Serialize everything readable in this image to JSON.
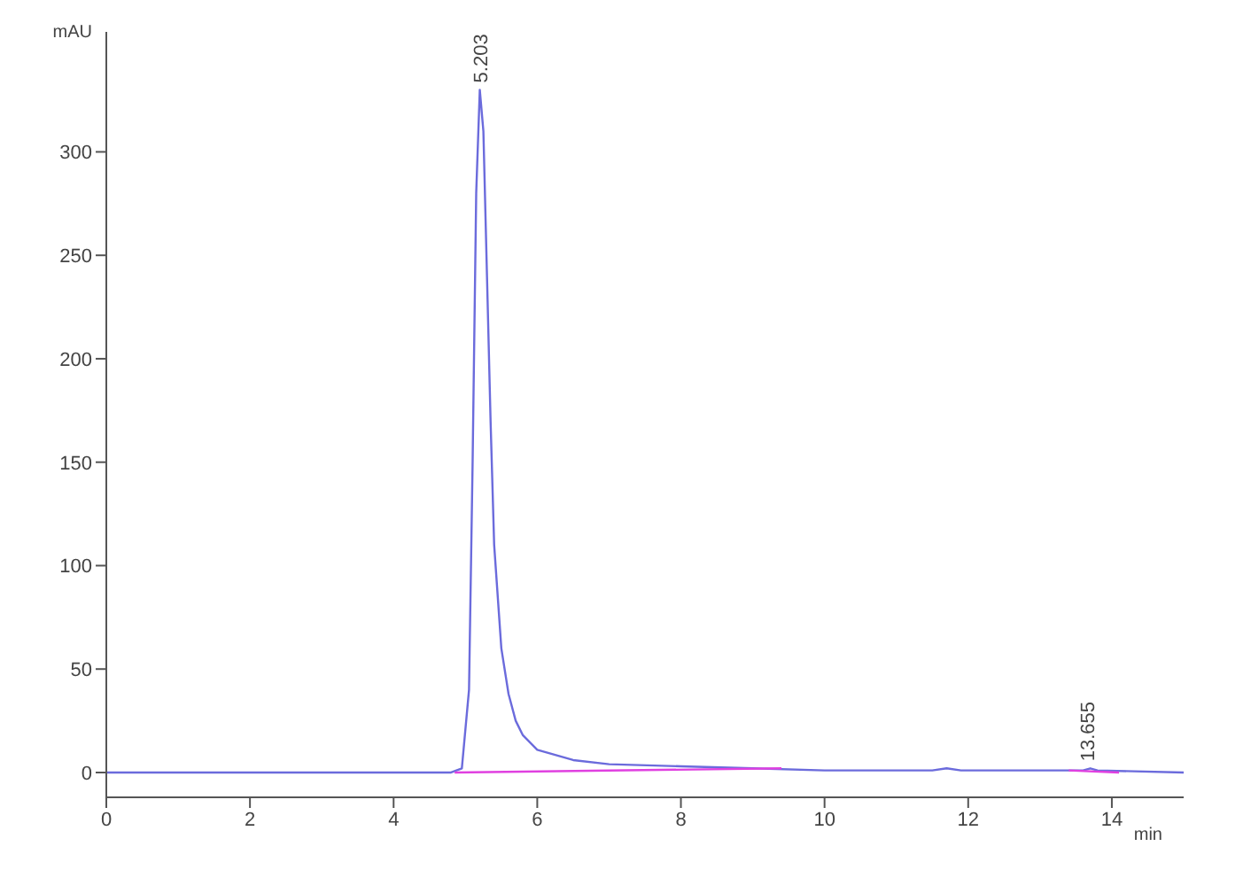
{
  "chart_data": {
    "type": "line",
    "xlabel": "min",
    "ylabel": "mAU",
    "xlim": [
      0,
      15
    ],
    "xticks": [
      0,
      2,
      4,
      6,
      8,
      10,
      12,
      14
    ],
    "ylim": [
      -12,
      358
    ],
    "yticks": [
      0,
      50,
      100,
      150,
      200,
      250,
      300
    ],
    "marker": "none",
    "series": [
      {
        "color": "#6b6bdc",
        "x": [
          0,
          2.5,
          4.8,
          4.95,
          5.05,
          5.1,
          5.15,
          5.2,
          5.25,
          5.3,
          5.35,
          5.4,
          5.5,
          5.6,
          5.7,
          5.8,
          6.0,
          6.5,
          7,
          8,
          9,
          10,
          11.5,
          11.7,
          11.9,
          13.6,
          13.7,
          13.8,
          15
        ],
        "values": [
          0,
          0,
          0,
          2,
          40,
          150,
          280,
          330,
          310,
          240,
          170,
          110,
          60,
          38,
          25,
          18,
          11,
          6,
          4,
          3,
          2,
          1,
          1,
          2,
          1,
          1,
          2,
          1,
          0
        ]
      },
      {
        "color": "#e040e0",
        "x": [
          4.85,
          9.4,
          9.41,
          13.4,
          14.1
        ],
        "values": [
          0,
          2,
          null,
          1,
          0
        ]
      }
    ],
    "annotations": [
      {
        "text": "5.203",
        "x": 5.203,
        "y": 330
      },
      {
        "text": "13.655",
        "x": 13.655,
        "y": 2
      }
    ]
  }
}
